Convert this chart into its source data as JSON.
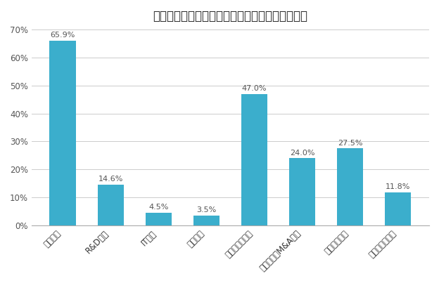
{
  "title": "政策の不確実性の影響が大きい経営上の意思決定",
  "categories": [
    "設備投資",
    "R&D投資",
    "IT投資",
    "広告宣伝",
    "海外進出・撤退",
    "組織再編（M&A等）",
    "正社員の採用",
    "非正社員の採用"
  ],
  "values": [
    65.9,
    14.6,
    4.5,
    3.5,
    47.0,
    24.0,
    27.5,
    11.8
  ],
  "bar_color": "#3BAECC",
  "ylim": [
    0,
    70
  ],
  "yticks": [
    0,
    10,
    20,
    30,
    40,
    50,
    60,
    70
  ],
  "ytick_labels": [
    "0%",
    "10%",
    "20%",
    "30%",
    "40%",
    "50%",
    "60%",
    "70%"
  ],
  "background_color": "#ffffff",
  "label_fontsize": 8.0,
  "title_fontsize": 12,
  "tick_fontsize": 8.5,
  "bar_width": 0.55
}
